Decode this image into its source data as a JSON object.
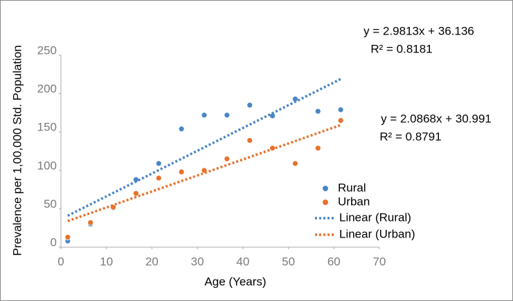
{
  "chart_data": {
    "type": "scatter",
    "x_label": "Age (Years)",
    "y_label": "Prevalence per 1,00,000 Std. Population",
    "annotations": [
      "y = 2.9813x + 36.136",
      "R² = 0.8181",
      "y = 2.0868x + 30.991",
      "R² = 0.8791"
    ],
    "xlim": [
      0,
      70
    ],
    "xticks": [
      0,
      10,
      20,
      30,
      40,
      50,
      60,
      70
    ],
    "ylim": [
      0,
      250
    ],
    "yticks": [
      0,
      50,
      100,
      150,
      200,
      250
    ],
    "series": [
      {
        "name": "Rural",
        "type": "scatter",
        "color": "#4a86c6",
        "x": [
          1.5,
          6.5,
          11.5,
          16.5,
          21.5,
          26.5,
          31.5,
          36.5,
          41.5,
          46.5,
          51.5,
          56.5,
          61.5
        ],
        "values": [
          8,
          30,
          51,
          88,
          109,
          154,
          172,
          172,
          185,
          171,
          193,
          177,
          179
        ]
      },
      {
        "name": "Urban",
        "type": "scatter",
        "color": "#e8712d",
        "x": [
          1.5,
          6.5,
          11.5,
          16.5,
          21.5,
          26.5,
          31.5,
          36.5,
          41.5,
          46.5,
          51.5,
          56.5,
          61.5
        ],
        "values": [
          13,
          32,
          52,
          70,
          90,
          98,
          100,
          115,
          139,
          129,
          109,
          129,
          165
        ]
      },
      {
        "name": "Linear (Rural)",
        "type": "line",
        "color": "#4a86c6",
        "x": [
          1.5,
          61.5
        ],
        "values": [
          41,
          219
        ]
      },
      {
        "name": "Linear (Urban)",
        "type": "line",
        "color": "#e8712d",
        "x": [
          1.5,
          61.5
        ],
        "values": [
          34,
          159
        ]
      }
    ]
  }
}
